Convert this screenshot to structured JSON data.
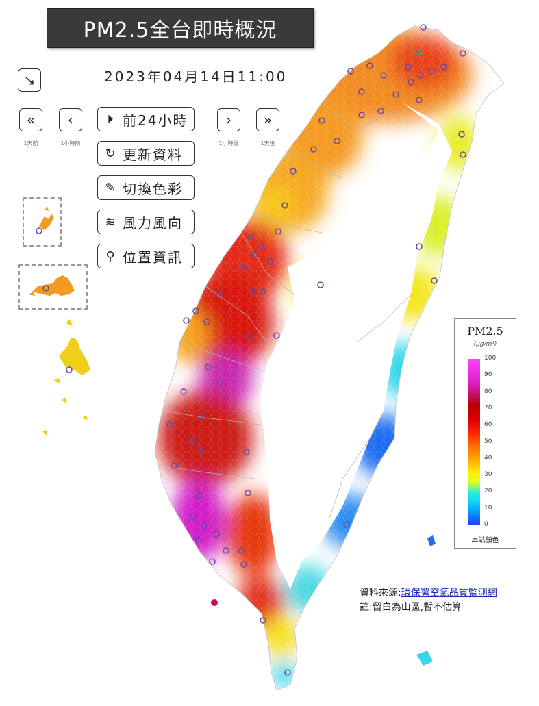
{
  "title": "PM2.5全台即時概況",
  "datetime": "2023年04月14日11:00",
  "nav": {
    "back_day": {
      "glyph": "«",
      "label": "1天前"
    },
    "back_hour": {
      "glyph": "‹",
      "label": "1小時前"
    },
    "forward_hour": {
      "glyph": "›",
      "label": "1小時後"
    },
    "forward_day": {
      "glyph": "»",
      "label": "1天後"
    }
  },
  "buttons": [
    {
      "icon": "play-circle-icon",
      "glyph": "⏵",
      "label": "前24小時"
    },
    {
      "icon": "refresh-icon",
      "glyph": "↻",
      "label": "更新資料"
    },
    {
      "icon": "brush-icon",
      "glyph": "✎",
      "label": "切換色彩"
    },
    {
      "icon": "wind-icon",
      "glyph": "≋",
      "label": "風力風向"
    },
    {
      "icon": "location-pin-icon",
      "glyph": "⚲",
      "label": "位置資訊"
    }
  ],
  "legend": {
    "title": "PM2.5",
    "unit": "(μg/m³)",
    "ticks": [
      "100",
      "90",
      "80",
      "70",
      "60",
      "50",
      "40",
      "30",
      "20",
      "10",
      "0"
    ],
    "footer": "本站顏色"
  },
  "source": {
    "label": "資料來源:",
    "link_text": "環保署空氣品質監測網",
    "note": "註:留白為山區,暫不估算"
  },
  "colors": {
    "purple": "#d21cc8",
    "red": "#d81810",
    "orange": "#f78a1e",
    "yellow": "#f3e61c",
    "cyan": "#34d7ea",
    "blue": "#1f6cf0"
  }
}
